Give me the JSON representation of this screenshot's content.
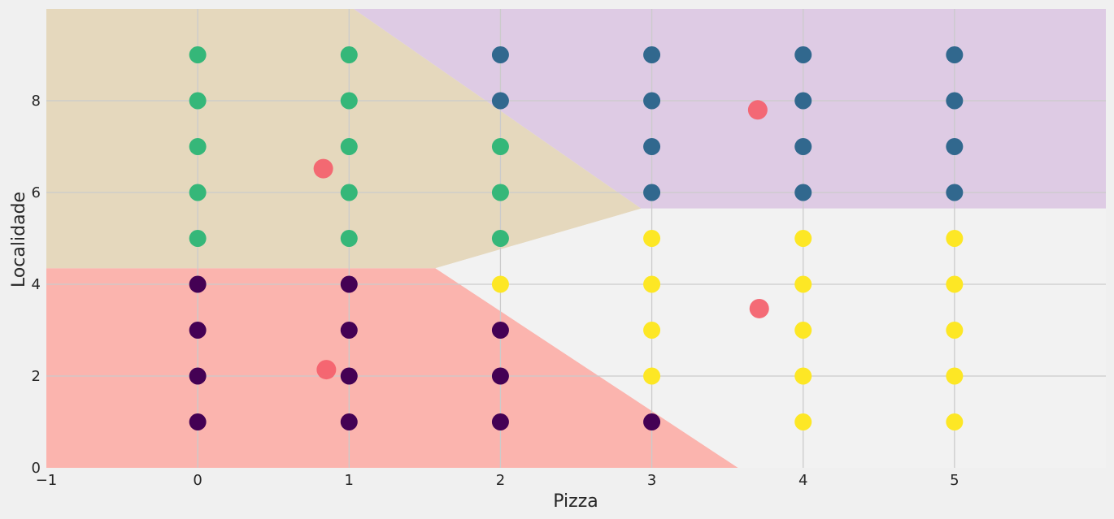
{
  "chart_data": {
    "type": "scatter",
    "title": "",
    "xlabel": "Pizza",
    "ylabel": "Localidade",
    "xlim": [
      -1,
      6
    ],
    "ylim": [
      0,
      10
    ],
    "x_ticks": [
      -1,
      0,
      1,
      2,
      3,
      4,
      5
    ],
    "y_ticks": [
      0,
      2,
      4,
      6,
      8
    ],
    "grid": true,
    "legend": "none",
    "colors": {
      "background": "#f0f0f0",
      "grid": "#cbcbcb",
      "cluster_0": "#440154",
      "cluster_1": "#31688e",
      "cluster_2": "#35b779",
      "cluster_3": "#fde725",
      "centroid": "#f4606b",
      "region_0": "#fbb4ae",
      "region_1": "#decbe4",
      "region_2": "#e5d8bd",
      "region_3": "#f2f2f2"
    },
    "regions": [
      {
        "cluster": 0,
        "polygon": [
          [
            -1,
            0
          ],
          [
            3.57,
            0
          ],
          [
            1.57,
            4.35
          ],
          [
            -1,
            4.35
          ]
        ]
      },
      {
        "cluster": 1,
        "polygon": [
          [
            1.03,
            10
          ],
          [
            6,
            10
          ],
          [
            6,
            5.65
          ],
          [
            2.93,
            5.65
          ]
        ]
      },
      {
        "cluster": 2,
        "polygon": [
          [
            -1,
            4.35
          ],
          [
            1.57,
            4.35
          ],
          [
            2.93,
            5.65
          ],
          [
            1.03,
            10
          ],
          [
            -1,
            10
          ]
        ]
      },
      {
        "cluster": 3,
        "polygon": [
          [
            3.57,
            0
          ],
          [
            6,
            0
          ],
          [
            6,
            5.65
          ],
          [
            2.93,
            5.65
          ],
          [
            1.57,
            4.35
          ]
        ]
      }
    ],
    "series": [
      {
        "cluster": 0,
        "points": [
          [
            0,
            1
          ],
          [
            0,
            2
          ],
          [
            0,
            3
          ],
          [
            0,
            4
          ],
          [
            1,
            1
          ],
          [
            1,
            2
          ],
          [
            1,
            3
          ],
          [
            1,
            4
          ],
          [
            2,
            1
          ],
          [
            2,
            2
          ],
          [
            2,
            3
          ],
          [
            3,
            1
          ]
        ]
      },
      {
        "cluster": 1,
        "points": [
          [
            2,
            8
          ],
          [
            2,
            9
          ],
          [
            3,
            6
          ],
          [
            3,
            7
          ],
          [
            3,
            8
          ],
          [
            3,
            9
          ],
          [
            4,
            6
          ],
          [
            4,
            7
          ],
          [
            4,
            8
          ],
          [
            4,
            9
          ],
          [
            5,
            6
          ],
          [
            5,
            7
          ],
          [
            5,
            8
          ],
          [
            5,
            9
          ]
        ]
      },
      {
        "cluster": 2,
        "points": [
          [
            0,
            5
          ],
          [
            0,
            6
          ],
          [
            0,
            7
          ],
          [
            0,
            8
          ],
          [
            0,
            9
          ],
          [
            1,
            5
          ],
          [
            1,
            6
          ],
          [
            1,
            7
          ],
          [
            1,
            8
          ],
          [
            1,
            9
          ],
          [
            2,
            5
          ],
          [
            2,
            6
          ],
          [
            2,
            7
          ]
        ]
      },
      {
        "cluster": 3,
        "points": [
          [
            2,
            4
          ],
          [
            3,
            2
          ],
          [
            3,
            3
          ],
          [
            3,
            4
          ],
          [
            3,
            5
          ],
          [
            4,
            1
          ],
          [
            4,
            2
          ],
          [
            4,
            3
          ],
          [
            4,
            4
          ],
          [
            4,
            5
          ],
          [
            5,
            1
          ],
          [
            5,
            2
          ],
          [
            5,
            3
          ],
          [
            5,
            4
          ],
          [
            5,
            5
          ]
        ]
      }
    ],
    "centroids": [
      [
        0.83,
        6.52
      ],
      [
        3.7,
        7.8
      ],
      [
        0.85,
        2.14
      ],
      [
        3.71,
        3.47
      ]
    ]
  }
}
